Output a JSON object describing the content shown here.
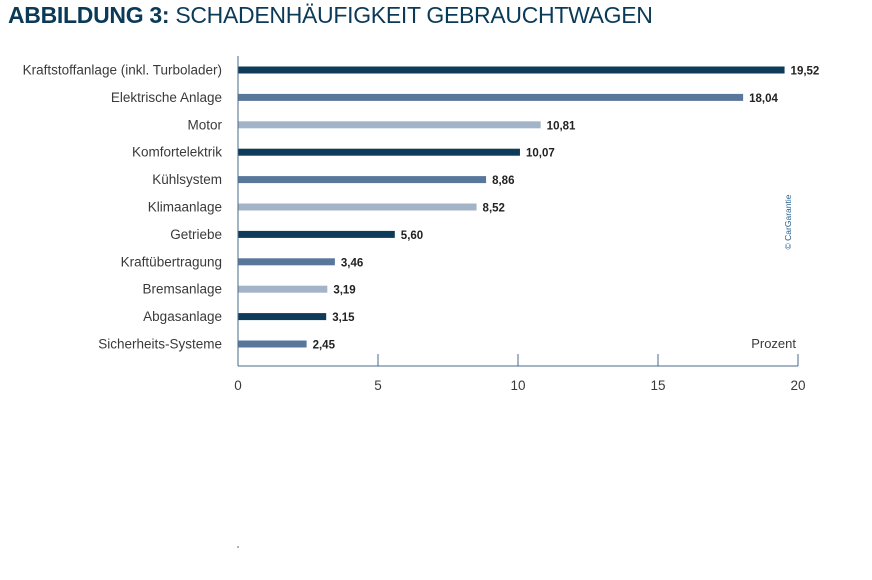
{
  "title": {
    "prefix": "ABBILDUNG 3:",
    "text": "SCHADENHÄUFIGKEIT GEBRAUCHTWAGEN"
  },
  "credit": "© CarGarantie",
  "colors": {
    "title": "#0b3a58",
    "bar_dark": "#0e3b5a",
    "bar_mid": "#59779a",
    "bar_light": "#a3b3c8",
    "axis": "#4a6a88"
  },
  "chart_data": {
    "type": "bar",
    "orientation": "horizontal",
    "categories": [
      "Kraftstoffanlage (inkl. Turbolader)",
      "Elektrische Anlage",
      "Motor",
      "Komfortelektrik",
      "Kühlsystem",
      "Klimaanlage",
      "Getriebe",
      "Kraftübertragung",
      "Bremsanlage",
      "Abgasanlage",
      "Sicherheits-Systeme"
    ],
    "values": [
      19.52,
      18.04,
      10.81,
      10.07,
      8.86,
      8.52,
      5.6,
      3.46,
      3.19,
      3.15,
      2.45
    ],
    "value_labels": [
      "19,52",
      "18,04",
      "10,81",
      "10,07",
      "8,86",
      "8,52",
      "5,60",
      "3,46",
      "3,19",
      "3,15",
      "2,45"
    ],
    "bar_color_pattern": [
      "bar_dark",
      "bar_mid",
      "bar_light"
    ],
    "x_ticks": [
      0,
      5,
      10,
      15,
      20
    ],
    "x_unit_label": "Prozent",
    "xlim": [
      0,
      20
    ],
    "grid": false,
    "legend": "none"
  }
}
